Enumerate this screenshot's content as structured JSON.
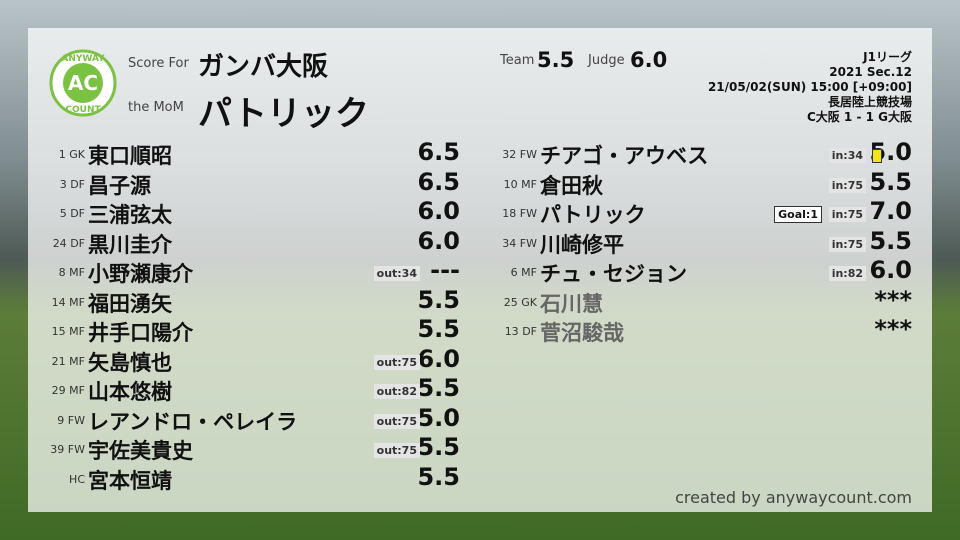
{
  "header": {
    "logo": {
      "top": "ANYWAY",
      "center": "AC",
      "bottom": "COUNT"
    },
    "score_for_label": "Score For",
    "team": "ガンバ大阪",
    "mom_label": "the MoM",
    "mom": "パトリック",
    "team_score_label": "Team",
    "team_score": "5.5",
    "judge_label": "Judge",
    "judge_score": "6.0"
  },
  "match": {
    "league": "J1リーグ",
    "section": "2021 Sec.12",
    "datetime": "21/05/02(SUN) 15:00 [+09:00]",
    "venue": "長居陸上競技場",
    "result": "C大阪 1 - 1 G大阪"
  },
  "starters": [
    {
      "number": "1",
      "position": "GK",
      "name": "東口順昭",
      "rating": "6.5"
    },
    {
      "number": "3",
      "position": "DF",
      "name": "昌子源",
      "rating": "6.5"
    },
    {
      "number": "5",
      "position": "DF",
      "name": "三浦弦太",
      "rating": "6.0"
    },
    {
      "number": "24",
      "position": "DF",
      "name": "黒川圭介",
      "rating": "6.0"
    },
    {
      "number": "8",
      "position": "MF",
      "name": "小野瀬康介",
      "sub": "out:34",
      "rating": "---"
    },
    {
      "number": "14",
      "position": "MF",
      "name": "福田湧矢",
      "rating": "5.5"
    },
    {
      "number": "15",
      "position": "MF",
      "name": "井手口陽介",
      "rating": "5.5"
    },
    {
      "number": "21",
      "position": "MF",
      "name": "矢島慎也",
      "sub": "out:75",
      "rating": "6.0"
    },
    {
      "number": "29",
      "position": "MF",
      "name": "山本悠樹",
      "sub": "out:82",
      "rating": "5.5"
    },
    {
      "number": "9",
      "position": "FW",
      "name": "レアンドロ・ペレイラ",
      "sub": "out:75",
      "rating": "5.0"
    },
    {
      "number": "39",
      "position": "FW",
      "name": "宇佐美貴史",
      "sub": "out:75",
      "rating": "5.5"
    },
    {
      "position": "HC",
      "name": "宮本恒靖",
      "rating": "5.5"
    }
  ],
  "substitutes": [
    {
      "number": "32",
      "position": "FW",
      "name": "チアゴ・アウベス",
      "sub": "in:34",
      "yellow_card": true,
      "rating": "5.0",
      "played": true
    },
    {
      "number": "10",
      "position": "MF",
      "name": "倉田秋",
      "sub": "in:75",
      "rating": "5.5",
      "played": true
    },
    {
      "number": "18",
      "position": "FW",
      "name": "パトリック",
      "goal": "Goal:1",
      "sub": "in:75",
      "rating": "7.0",
      "played": true
    },
    {
      "number": "34",
      "position": "FW",
      "name": "川崎修平",
      "sub": "in:75",
      "rating": "5.5",
      "played": true
    },
    {
      "number": "6",
      "position": "MF",
      "name": "チュ・セジョン",
      "sub": "in:82",
      "rating": "6.0",
      "played": true
    },
    {
      "number": "25",
      "position": "GK",
      "name": "石川慧",
      "rating": "***",
      "played": false
    },
    {
      "number": "13",
      "position": "DF",
      "name": "菅沼駿哉",
      "rating": "***",
      "played": false
    }
  ],
  "footer": "created by anywaycount.com"
}
